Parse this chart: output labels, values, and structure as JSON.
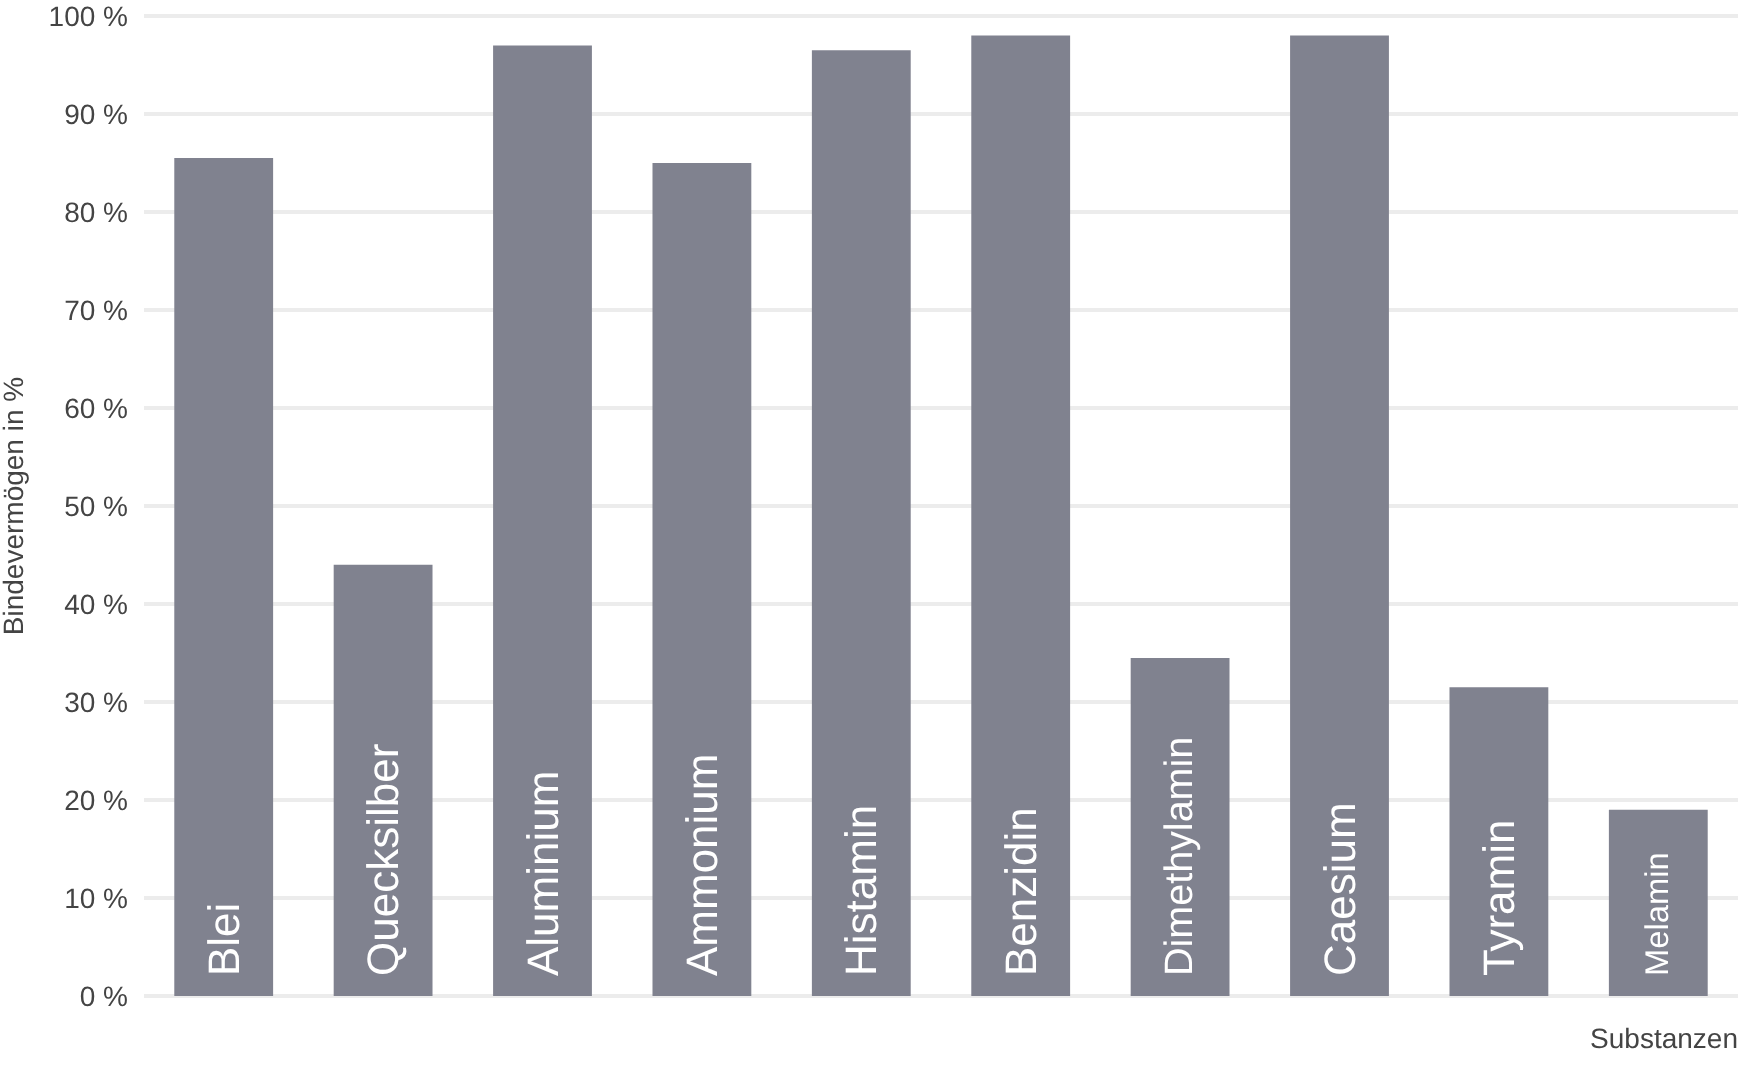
{
  "chart_data": {
    "type": "bar",
    "xlabel": "Substanzen",
    "ylabel": "Bindevermögen in %",
    "categories": [
      "Blei",
      "Quecksilber",
      "Aluminium",
      "Ammonium",
      "Histamin",
      "Benzidin",
      "Dimethylamin",
      "Caesium",
      "Tyramin",
      "Melamin"
    ],
    "values": [
      85.5,
      44,
      97,
      85,
      96.5,
      98,
      34.5,
      98,
      31.5,
      19
    ],
    "color": "#80828f",
    "ylim": [
      0,
      100
    ],
    "yticks": [
      {
        "value": 0,
        "label": "0 %"
      },
      {
        "value": 10,
        "label": "10 %"
      },
      {
        "value": 20,
        "label": "20 %"
      },
      {
        "value": 30,
        "label": "30 %"
      },
      {
        "value": 40,
        "label": "40 %"
      },
      {
        "value": 50,
        "label": "50 %"
      },
      {
        "value": 60,
        "label": "60 %"
      },
      {
        "value": 70,
        "label": "70 %"
      },
      {
        "value": 80,
        "label": "80 %"
      },
      {
        "value": 90,
        "label": "90 %"
      },
      {
        "value": 100,
        "label": "100 %"
      }
    ],
    "grid": "y"
  }
}
